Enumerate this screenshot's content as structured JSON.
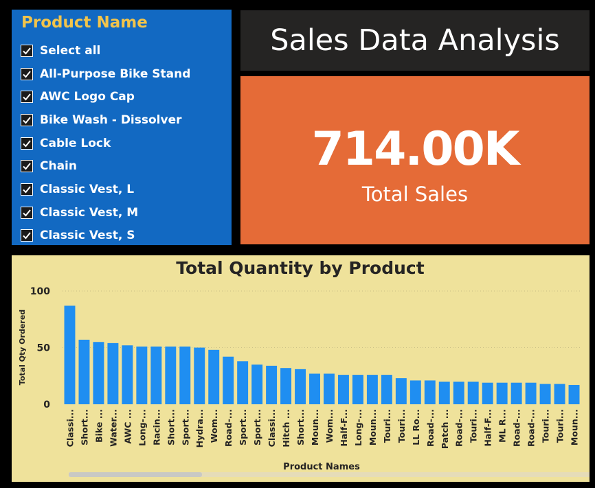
{
  "slicer": {
    "title": "Product Name",
    "items": [
      {
        "label": "Select all",
        "checked": true
      },
      {
        "label": "All-Purpose Bike Stand",
        "checked": true
      },
      {
        "label": "AWC Logo Cap",
        "checked": true
      },
      {
        "label": "Bike Wash - Dissolver",
        "checked": true
      },
      {
        "label": "Cable Lock",
        "checked": true
      },
      {
        "label": "Chain",
        "checked": true
      },
      {
        "label": "Classic Vest, L",
        "checked": true
      },
      {
        "label": "Classic Vest, M",
        "checked": true
      },
      {
        "label": "Classic Vest, S",
        "checked": true
      }
    ]
  },
  "header": {
    "title": "Sales Data Analysis"
  },
  "card": {
    "value": "714.00K",
    "label": "Total Sales"
  },
  "colors": {
    "slicer_bg": "#1269c2",
    "slicer_title": "#f2c44b",
    "title_bg": "#252423",
    "card_bg": "#e56b37",
    "chart_bg": "#efe29b",
    "bar": "#1f8ef1"
  },
  "chart_data": {
    "type": "bar",
    "title": "Total Quantity by Product",
    "xlabel": "Product Names",
    "ylabel": "Total Qty Ordered",
    "ylim": [
      0,
      100
    ],
    "yticks": [
      0,
      50,
      100
    ],
    "grid": false,
    "categories": [
      "Classi...",
      "Short...",
      "Bike ...",
      "Water...",
      "AWC ...",
      "Long-...",
      "Racin...",
      "Short...",
      "Sport...",
      "Hydra...",
      "Wom...",
      "Road-...",
      "Sport...",
      "Sport...",
      "Classi...",
      "Hitch ...",
      "Short...",
      "Moun...",
      "Wom...",
      "Half-F...",
      "Long-...",
      "Moun...",
      "Touri...",
      "Touri...",
      "LL Ro...",
      "Road-...",
      "Patch ...",
      "Road-...",
      "Touri...",
      "Half-F...",
      "ML R...",
      "Road-...",
      "Road-...",
      "Touri...",
      "Touri...",
      "Moun..."
    ],
    "values": [
      87,
      57,
      55,
      54,
      52,
      51,
      51,
      51,
      51,
      50,
      48,
      42,
      38,
      35,
      34,
      32,
      31,
      27,
      27,
      26,
      26,
      26,
      26,
      23,
      21,
      21,
      20,
      20,
      20,
      19,
      19,
      19,
      19,
      18,
      18,
      17
    ]
  }
}
